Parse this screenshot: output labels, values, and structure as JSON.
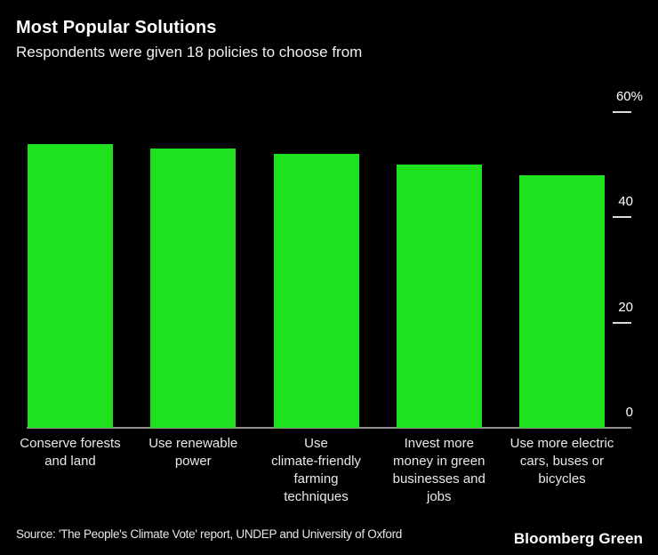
{
  "header": {
    "title": "Most Popular Solutions",
    "subtitle": "Respondents were given 18 policies to choose from"
  },
  "chart_data": {
    "type": "bar",
    "title": "Most Popular Solutions",
    "subtitle": "Respondents were given 18 policies to choose from",
    "categories": [
      "Conserve forests and land",
      "Use renewable power",
      "Use climate-friendly farming techniques",
      "Invest more money in green businesses and jobs",
      "Use more electric cars, buses or bicycles"
    ],
    "category_lines": [
      [
        "Conserve forests",
        "and land"
      ],
      [
        "Use renewable",
        "power"
      ],
      [
        "Use",
        "climate-friendly",
        "farming",
        "techniques"
      ],
      [
        "Invest more",
        "money in green",
        "businesses and",
        "jobs"
      ],
      [
        "Use more electric",
        "cars, buses or",
        "bicycles"
      ]
    ],
    "values": [
      54,
      53,
      52,
      50,
      48
    ],
    "unit": "%",
    "ylabel": "",
    "xlabel": "",
    "ylim": [
      0,
      60
    ],
    "yticks": [
      {
        "value": 60,
        "label": "60%"
      },
      {
        "value": 40,
        "label": "40"
      },
      {
        "value": 20,
        "label": "20"
      },
      {
        "value": 0,
        "label": "0"
      }
    ],
    "axis_position": "right",
    "grid": false,
    "legend": false,
    "bar_color": "#1de21d",
    "background_color": "#000000"
  },
  "footer": {
    "source": "Source: 'The People's Climate Vote' report, UNDEP and University of Oxford",
    "brand": "Bloomberg Green"
  }
}
